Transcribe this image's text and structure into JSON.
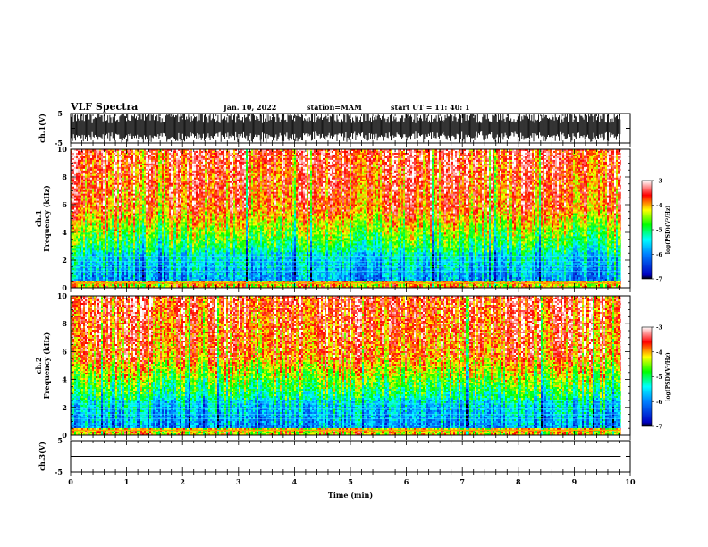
{
  "header": {
    "title": "VLF Spectra",
    "date": "Jan. 10, 2022",
    "station": "station=MAM",
    "start_ut": "start UT =   11: 40: 1"
  },
  "chart_data": [
    {
      "type": "line",
      "panel": "ch1-waveform",
      "ylabel": "ch.1(V)",
      "ylim": [
        -5,
        5
      ],
      "yticks": [
        "5",
        "-5"
      ],
      "xlim": [
        0,
        10
      ]
    },
    {
      "type": "heatmap",
      "panel": "ch1-spectrogram",
      "ylabel": "ch.1\nFrequency (kHz)",
      "ylabel_lines": [
        "ch.1",
        "Frequency (kHz)"
      ],
      "ylim": [
        0,
        10
      ],
      "yticks": [
        "0",
        "2",
        "4",
        "6",
        "8",
        "10"
      ],
      "xlim": [
        0,
        10
      ],
      "data_extent_min": 9.83,
      "colorbar": {
        "label": "log(PSD)(V²/Hz)",
        "range": [
          -7,
          -3
        ],
        "ticks": [
          "-3",
          "-4",
          "-5",
          "-6",
          "-7"
        ],
        "colors": [
          "#000000",
          "#0000ff",
          "#00ffff",
          "#00ff00",
          "#ffff00",
          "#ff0000",
          "#ffffff"
        ]
      }
    },
    {
      "type": "heatmap",
      "panel": "ch2-spectrogram",
      "ylabel": "ch.2\nFrequency (kHz)",
      "ylabel_lines": [
        "ch.2",
        "Frequency (kHz)"
      ],
      "ylim": [
        0,
        10
      ],
      "yticks": [
        "0",
        "2",
        "4",
        "6",
        "8",
        "10"
      ],
      "xlim": [
        0,
        10
      ],
      "data_extent_min": 9.83,
      "colorbar": {
        "label": "log(PSD)(V²/Hz)",
        "range": [
          -7,
          -3
        ],
        "ticks": [
          "-3",
          "-4",
          "-5",
          "-6",
          "-7"
        ],
        "colors": [
          "#000000",
          "#0000ff",
          "#00ffff",
          "#00ff00",
          "#ffff00",
          "#ff0000",
          "#ffffff"
        ]
      }
    },
    {
      "type": "line",
      "panel": "ch3-waveform",
      "ylabel": "ch.3(V)",
      "ylim": [
        -5,
        5
      ],
      "yticks": [
        "5",
        "-5"
      ],
      "xlim": [
        0,
        10
      ],
      "x": [
        0,
        9.83
      ],
      "y": [
        0,
        0
      ]
    }
  ],
  "xaxis": {
    "label": "Time (min)",
    "ticks": [
      "0",
      "1",
      "2",
      "3",
      "4",
      "5",
      "6",
      "7",
      "8",
      "9",
      "10"
    ]
  }
}
